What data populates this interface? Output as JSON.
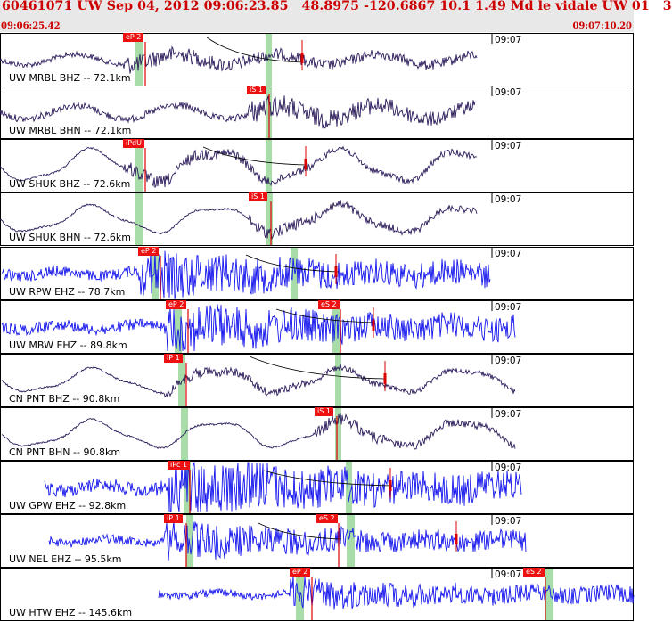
{
  "header": {
    "title": "60461071 UW Sep 04, 2012 09:06:23.85   48.8975 -120.6867 10.1 1.49 Md le vidale UW 01   3",
    "start_time": "09:06:25.42",
    "end_time": "09:07:10.20"
  },
  "colors": {
    "header_text": "#cc0000",
    "trace_short_period": "#2b1a5a",
    "trace_broadband": "#1515ee",
    "pick_box": "#ee1111",
    "pick_window": "#a8dca8",
    "arrival_curve": "#000000"
  },
  "traces": [
    {
      "label": "UW MRBL BHZ -- 72.1km",
      "tick_label": "09:07",
      "style": "short_period",
      "picks": [
        {
          "label": "eP 2",
          "kind": "P"
        }
      ]
    },
    {
      "label": "UW MRBL BHN -- 72.1km",
      "tick_label": "09:07",
      "style": "short_period",
      "picks": [
        {
          "label": "iS 1",
          "kind": "S"
        }
      ]
    },
    {
      "label": "UW SHUK BHZ -- 72.6km",
      "tick_label": "09:07",
      "style": "short_period",
      "picks": [
        {
          "label": "iPdU",
          "kind": "P"
        }
      ]
    },
    {
      "label": "UW SHUK BHN -- 72.6km",
      "tick_label": "09:07",
      "style": "short_period",
      "picks": [
        {
          "label": "iS 1",
          "kind": "S"
        }
      ]
    },
    {
      "label": "UW RPW EHZ -- 78.7km",
      "tick_label": "09:07",
      "style": "broadband",
      "picks": [
        {
          "label": "eP 2",
          "kind": "P"
        }
      ]
    },
    {
      "label": "UW MBW EHZ -- 89.8km",
      "tick_label": "09:07",
      "style": "broadband",
      "picks": [
        {
          "label": "eP 2",
          "kind": "P"
        },
        {
          "label": "eS 2",
          "kind": "S"
        }
      ]
    },
    {
      "label": "CN PNT BHZ -- 90.8km",
      "tick_label": "09:07",
      "style": "short_period",
      "picks": [
        {
          "label": "iP 1",
          "kind": "P"
        }
      ]
    },
    {
      "label": "CN PNT BHN -- 90.8km",
      "tick_label": "09:07",
      "style": "short_period",
      "picks": [
        {
          "label": "iS 1",
          "kind": "S"
        }
      ]
    },
    {
      "label": "UW GPW EHZ -- 92.8km",
      "tick_label": "09:07",
      "style": "broadband",
      "picks": [
        {
          "label": "iPc 1",
          "kind": "P"
        }
      ]
    },
    {
      "label": "UW NEL EHZ -- 95.5km",
      "tick_label": "09:07",
      "style": "broadband",
      "picks": [
        {
          "label": "iP 1",
          "kind": "P"
        },
        {
          "label": "eS 2",
          "kind": "S"
        }
      ]
    },
    {
      "label": "UW HTW EHZ -- 145.6km",
      "tick_label": "09:07",
      "style": "broadband",
      "picks": [
        {
          "label": "eP 2",
          "kind": "P"
        },
        {
          "label": "eS 2",
          "kind": "S"
        }
      ]
    }
  ]
}
